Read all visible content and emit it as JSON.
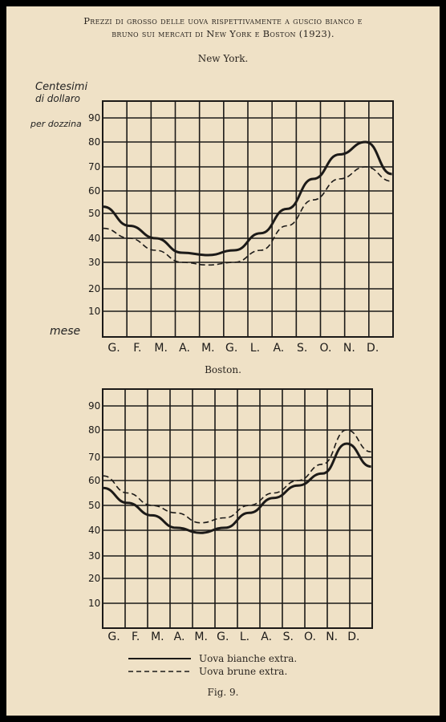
{
  "title_line1": "Prezzi di grosso delle uova rispettivamente a guscio bianco e",
  "title_line2": "bruno sui mercati di New York e Boston (1923).",
  "ylabel_lines": [
    "Centesimi",
    "di dollaro",
    "per dozzina"
  ],
  "xlabel": "mese",
  "legend": {
    "white": "Uova bianche extra.",
    "brown": "Uova brune extra."
  },
  "figure_caption": "Fig. 9.",
  "colors": {
    "paper": "#efe1c6",
    "ink": "#1c1a18"
  },
  "chart_data": [
    {
      "type": "line",
      "title": "New York.",
      "x": [
        "G.",
        "F.",
        "M.",
        "A.",
        "M.",
        "G.",
        "L.",
        "A.",
        "S.",
        "O.",
        "N.",
        "D."
      ],
      "y_ticks": [
        10,
        20,
        30,
        40,
        50,
        60,
        70,
        80,
        90
      ],
      "ylim": [
        0,
        100
      ],
      "series": [
        {
          "name": "Uova bianche extra.",
          "style": "solid",
          "values": [
            53,
            45,
            40,
            34,
            33,
            35,
            42,
            52,
            65,
            75,
            80,
            67
          ]
        },
        {
          "name": "Uova brune extra.",
          "style": "dashed",
          "values": [
            44,
            40,
            35,
            30,
            29,
            30,
            35,
            45,
            56,
            65,
            70,
            64
          ]
        }
      ],
      "grid": true
    },
    {
      "type": "line",
      "title": "Boston.",
      "x": [
        "G.",
        "F.",
        "M.",
        "A.",
        "M.",
        "G.",
        "L.",
        "A.",
        "S.",
        "O.",
        "N.",
        "D."
      ],
      "y_ticks": [
        10,
        20,
        30,
        40,
        50,
        60,
        70,
        80,
        90
      ],
      "ylim": [
        0,
        100
      ],
      "series": [
        {
          "name": "Uova bianche extra.",
          "style": "solid",
          "values": [
            57,
            51,
            46,
            41,
            39,
            41,
            47,
            53,
            58,
            63,
            75,
            66
          ]
        },
        {
          "name": "Uova brune extra.",
          "style": "dashed",
          "values": [
            62,
            55,
            50,
            47,
            43,
            45,
            50,
            55,
            60,
            67,
            80,
            72
          ]
        }
      ],
      "grid": true
    }
  ]
}
